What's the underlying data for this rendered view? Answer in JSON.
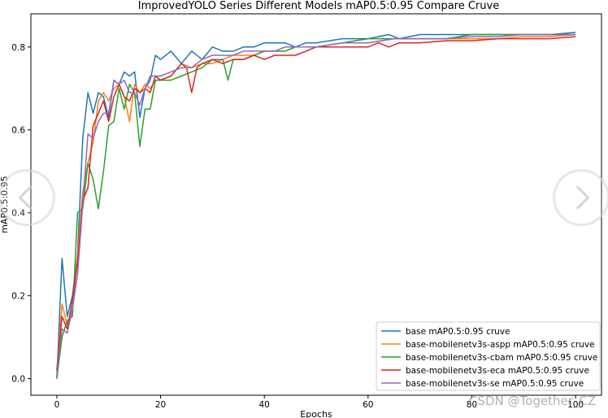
{
  "chart_data": {
    "type": "line",
    "title": "ImprovedYOLO Series Different Models mAP0.5:0.95 Compare Cruve",
    "xlabel": "Epochs",
    "ylabel": "mAP0.5:0.95",
    "xlim": [
      -5,
      105
    ],
    "ylim": [
      -0.04,
      0.88
    ],
    "xticks": [
      0,
      20,
      40,
      60,
      80,
      100
    ],
    "yticks": [
      0.0,
      0.2,
      0.4,
      0.6,
      0.8
    ],
    "xtick_labels": [
      "0",
      "20",
      "40",
      "60",
      "80",
      "100"
    ],
    "ytick_labels": [
      "0.0",
      "0.2",
      "0.4",
      "0.6",
      "0.8"
    ],
    "grid": false,
    "legend_position": "lower-right",
    "series": [
      {
        "name": "base mAP0.5:0.95 cruve",
        "color": "#1f77b4",
        "points": [
          [
            0,
            0.0
          ],
          [
            1,
            0.29
          ],
          [
            2,
            0.15
          ],
          [
            3,
            0.2
          ],
          [
            4,
            0.3
          ],
          [
            5,
            0.58
          ],
          [
            6,
            0.69
          ],
          [
            7,
            0.64
          ],
          [
            8,
            0.69
          ],
          [
            9,
            0.68
          ],
          [
            10,
            0.63
          ],
          [
            11,
            0.72
          ],
          [
            12,
            0.71
          ],
          [
            13,
            0.74
          ],
          [
            14,
            0.73
          ],
          [
            15,
            0.74
          ],
          [
            16,
            0.63
          ],
          [
            17,
            0.7
          ],
          [
            18,
            0.72
          ],
          [
            19,
            0.78
          ],
          [
            20,
            0.77
          ],
          [
            22,
            0.79
          ],
          [
            24,
            0.76
          ],
          [
            26,
            0.79
          ],
          [
            28,
            0.77
          ],
          [
            30,
            0.8
          ],
          [
            32,
            0.79
          ],
          [
            34,
            0.79
          ],
          [
            36,
            0.8
          ],
          [
            38,
            0.8
          ],
          [
            40,
            0.81
          ],
          [
            42,
            0.81
          ],
          [
            44,
            0.81
          ],
          [
            46,
            0.8
          ],
          [
            48,
            0.81
          ],
          [
            50,
            0.81
          ],
          [
            55,
            0.82
          ],
          [
            60,
            0.82
          ],
          [
            64,
            0.83
          ],
          [
            66,
            0.82
          ],
          [
            70,
            0.83
          ],
          [
            75,
            0.83
          ],
          [
            80,
            0.83
          ],
          [
            85,
            0.83
          ],
          [
            90,
            0.83
          ],
          [
            95,
            0.83
          ],
          [
            100,
            0.835
          ]
        ]
      },
      {
        "name": "base-mobilenetv3s-aspp mAP0.5:0.95 cruve",
        "color": "#ff7f0e",
        "points": [
          [
            0,
            0.02
          ],
          [
            1,
            0.18
          ],
          [
            2,
            0.13
          ],
          [
            3,
            0.16
          ],
          [
            4,
            0.3
          ],
          [
            5,
            0.45
          ],
          [
            6,
            0.52
          ],
          [
            7,
            0.57
          ],
          [
            8,
            0.67
          ],
          [
            9,
            0.69
          ],
          [
            10,
            0.67
          ],
          [
            11,
            0.7
          ],
          [
            12,
            0.71
          ],
          [
            13,
            0.68
          ],
          [
            14,
            0.62
          ],
          [
            15,
            0.71
          ],
          [
            16,
            0.69
          ],
          [
            17,
            0.71
          ],
          [
            18,
            0.7
          ],
          [
            19,
            0.72
          ],
          [
            20,
            0.72
          ],
          [
            22,
            0.73
          ],
          [
            24,
            0.76
          ],
          [
            26,
            0.75
          ],
          [
            28,
            0.76
          ],
          [
            30,
            0.76
          ],
          [
            32,
            0.77
          ],
          [
            34,
            0.78
          ],
          [
            36,
            0.78
          ],
          [
            38,
            0.78
          ],
          [
            40,
            0.79
          ],
          [
            42,
            0.79
          ],
          [
            44,
            0.79
          ],
          [
            46,
            0.8
          ],
          [
            48,
            0.8
          ],
          [
            50,
            0.8
          ],
          [
            55,
            0.81
          ],
          [
            60,
            0.81
          ],
          [
            65,
            0.82
          ],
          [
            70,
            0.82
          ],
          [
            75,
            0.82
          ],
          [
            80,
            0.82
          ],
          [
            85,
            0.82
          ],
          [
            90,
            0.825
          ],
          [
            95,
            0.825
          ],
          [
            100,
            0.83
          ]
        ]
      },
      {
        "name": "base-mobilenetv3s-cbam mAP0.5:0.95 cruve",
        "color": "#2ca02c",
        "points": [
          [
            0,
            0.0
          ],
          [
            1,
            0.1
          ],
          [
            2,
            0.14
          ],
          [
            3,
            0.15
          ],
          [
            4,
            0.4
          ],
          [
            5,
            0.41
          ],
          [
            6,
            0.52
          ],
          [
            7,
            0.48
          ],
          [
            8,
            0.41
          ],
          [
            9,
            0.5
          ],
          [
            10,
            0.61
          ],
          [
            11,
            0.62
          ],
          [
            12,
            0.7
          ],
          [
            13,
            0.65
          ],
          [
            14,
            0.71
          ],
          [
            15,
            0.69
          ],
          [
            16,
            0.56
          ],
          [
            17,
            0.65
          ],
          [
            18,
            0.65
          ],
          [
            19,
            0.72
          ],
          [
            20,
            0.72
          ],
          [
            22,
            0.72
          ],
          [
            24,
            0.73
          ],
          [
            26,
            0.74
          ],
          [
            28,
            0.75
          ],
          [
            30,
            0.77
          ],
          [
            32,
            0.77
          ],
          [
            33,
            0.72
          ],
          [
            34,
            0.77
          ],
          [
            36,
            0.77
          ],
          [
            38,
            0.78
          ],
          [
            40,
            0.79
          ],
          [
            42,
            0.79
          ],
          [
            44,
            0.79
          ],
          [
            46,
            0.8
          ],
          [
            48,
            0.8
          ],
          [
            50,
            0.8
          ],
          [
            55,
            0.81
          ],
          [
            60,
            0.82
          ],
          [
            65,
            0.82
          ],
          [
            70,
            0.82
          ],
          [
            75,
            0.82
          ],
          [
            80,
            0.83
          ],
          [
            85,
            0.83
          ],
          [
            90,
            0.83
          ],
          [
            95,
            0.83
          ],
          [
            100,
            0.83
          ]
        ]
      },
      {
        "name": "base-mobilenetv3s-eca mAP0.5:0.95 cruve",
        "color": "#d62728",
        "points": [
          [
            0,
            0.02
          ],
          [
            1,
            0.15
          ],
          [
            2,
            0.12
          ],
          [
            3,
            0.19
          ],
          [
            4,
            0.28
          ],
          [
            5,
            0.43
          ],
          [
            6,
            0.46
          ],
          [
            7,
            0.61
          ],
          [
            8,
            0.64
          ],
          [
            9,
            0.67
          ],
          [
            10,
            0.62
          ],
          [
            11,
            0.68
          ],
          [
            12,
            0.71
          ],
          [
            13,
            0.68
          ],
          [
            14,
            0.67
          ],
          [
            15,
            0.7
          ],
          [
            16,
            0.69
          ],
          [
            17,
            0.7
          ],
          [
            18,
            0.69
          ],
          [
            19,
            0.73
          ],
          [
            20,
            0.72
          ],
          [
            22,
            0.73
          ],
          [
            24,
            0.76
          ],
          [
            25,
            0.75
          ],
          [
            26,
            0.69
          ],
          [
            27,
            0.75
          ],
          [
            28,
            0.76
          ],
          [
            30,
            0.77
          ],
          [
            32,
            0.76
          ],
          [
            34,
            0.77
          ],
          [
            36,
            0.77
          ],
          [
            38,
            0.78
          ],
          [
            40,
            0.77
          ],
          [
            42,
            0.78
          ],
          [
            44,
            0.78
          ],
          [
            46,
            0.78
          ],
          [
            48,
            0.79
          ],
          [
            50,
            0.8
          ],
          [
            55,
            0.8
          ],
          [
            60,
            0.8
          ],
          [
            62,
            0.81
          ],
          [
            64,
            0.8
          ],
          [
            66,
            0.81
          ],
          [
            68,
            0.81
          ],
          [
            70,
            0.81
          ],
          [
            75,
            0.815
          ],
          [
            80,
            0.815
          ],
          [
            85,
            0.82
          ],
          [
            90,
            0.82
          ],
          [
            95,
            0.82
          ],
          [
            100,
            0.825
          ]
        ]
      },
      {
        "name": "base-mobilenetv3s-se mAP0.5:0.95 cruve",
        "color": "#9467bd",
        "points": [
          [
            0,
            0.01
          ],
          [
            1,
            0.12
          ],
          [
            2,
            0.11
          ],
          [
            3,
            0.17
          ],
          [
            4,
            0.25
          ],
          [
            5,
            0.42
          ],
          [
            6,
            0.59
          ],
          [
            7,
            0.58
          ],
          [
            8,
            0.62
          ],
          [
            9,
            0.64
          ],
          [
            10,
            0.64
          ],
          [
            11,
            0.72
          ],
          [
            12,
            0.71
          ],
          [
            13,
            0.72
          ],
          [
            14,
            0.69
          ],
          [
            15,
            0.69
          ],
          [
            16,
            0.66
          ],
          [
            17,
            0.7
          ],
          [
            18,
            0.73
          ],
          [
            19,
            0.73
          ],
          [
            20,
            0.73
          ],
          [
            22,
            0.74
          ],
          [
            24,
            0.75
          ],
          [
            26,
            0.75
          ],
          [
            28,
            0.77
          ],
          [
            30,
            0.78
          ],
          [
            32,
            0.78
          ],
          [
            34,
            0.78
          ],
          [
            36,
            0.79
          ],
          [
            38,
            0.79
          ],
          [
            40,
            0.79
          ],
          [
            42,
            0.79
          ],
          [
            44,
            0.8
          ],
          [
            46,
            0.8
          ],
          [
            48,
            0.8
          ],
          [
            50,
            0.8
          ],
          [
            55,
            0.81
          ],
          [
            60,
            0.81
          ],
          [
            65,
            0.82
          ],
          [
            70,
            0.82
          ],
          [
            75,
            0.82
          ],
          [
            80,
            0.825
          ],
          [
            85,
            0.825
          ],
          [
            90,
            0.83
          ],
          [
            95,
            0.83
          ],
          [
            100,
            0.83
          ]
        ]
      }
    ]
  },
  "overlay": {
    "watermark": "CSDN @Together_CZ",
    "prev_icon": "chevron-left-icon",
    "next_icon": "chevron-right-icon"
  }
}
